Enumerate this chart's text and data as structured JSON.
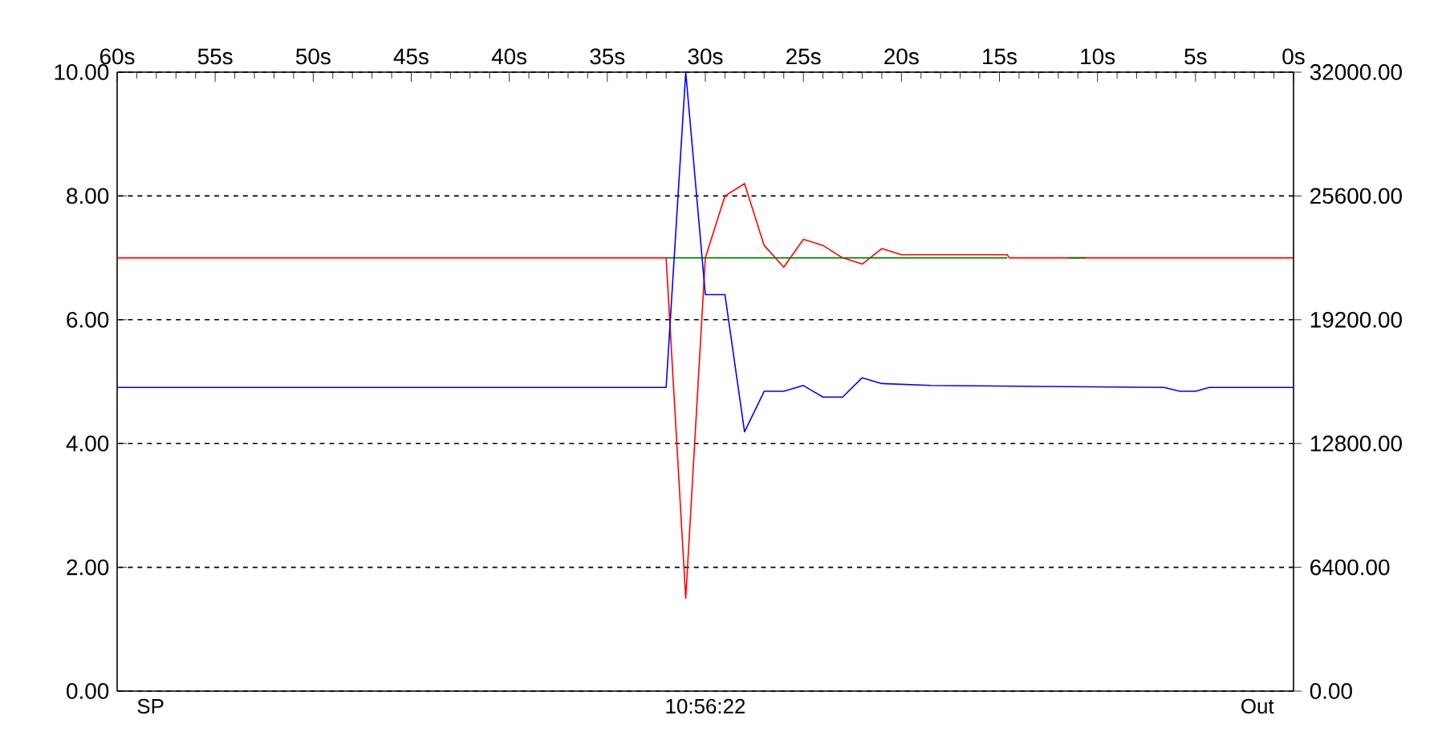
{
  "chart_data": {
    "type": "line",
    "x": [
      60,
      32,
      31,
      30,
      29,
      28,
      27,
      26,
      25,
      24,
      23,
      22,
      21,
      20,
      14.6,
      14.5,
      0
    ],
    "xlim": [
      60,
      0
    ],
    "xticks": [
      {
        "value": 60,
        "label": "60s"
      },
      {
        "value": 55,
        "label": "55s"
      },
      {
        "value": 50,
        "label": "50s"
      },
      {
        "value": 45,
        "label": "45s"
      },
      {
        "value": 40,
        "label": "40s"
      },
      {
        "value": 35,
        "label": "35s"
      },
      {
        "value": 30,
        "label": "30s"
      },
      {
        "value": 25,
        "label": "25s"
      },
      {
        "value": 20,
        "label": "20s"
      },
      {
        "value": 15,
        "label": "15s"
      },
      {
        "value": 10,
        "label": "10s"
      },
      {
        "value": 5,
        "label": "5s"
      },
      {
        "value": 0,
        "label": "0s"
      }
    ],
    "ylim": [
      0,
      10
    ],
    "yticks": [
      {
        "value": 0,
        "label": "0.00"
      },
      {
        "value": 2,
        "label": "2.00"
      },
      {
        "value": 4,
        "label": "4.00"
      },
      {
        "value": 6,
        "label": "6.00"
      },
      {
        "value": 8,
        "label": "8.00"
      },
      {
        "value": 10,
        "label": "10.00"
      }
    ],
    "y2lim": [
      0,
      32000
    ],
    "y2ticks": [
      {
        "value": 0,
        "label": "0.00"
      },
      {
        "value": 6400,
        "label": "6400.00"
      },
      {
        "value": 12800,
        "label": "12800.00"
      },
      {
        "value": 19200,
        "label": "19200.00"
      },
      {
        "value": 25600,
        "label": "25600.00"
      },
      {
        "value": 32000,
        "label": "32000.00"
      }
    ],
    "series": [
      {
        "color": "#ff0000",
        "values": [
          7.0,
          7.0,
          1.5,
          7.0,
          8.0,
          8.2,
          7.2,
          6.85,
          7.3,
          7.2,
          7.0,
          6.9,
          7.15,
          7.05,
          7.05,
          7.0,
          7.0
        ]
      },
      {
        "color": "#008000",
        "x": [
          32,
          14.6,
          13,
          11.5,
          10.6
        ],
        "values": [
          7.0,
          7.0,
          null,
          7.0,
          7.0
        ]
      },
      {
        "color": "#0000ff",
        "axis": "y2",
        "x": [
          60,
          32,
          31,
          30,
          29,
          28,
          27,
          26,
          25,
          24,
          23,
          22,
          21,
          18.5,
          6.6,
          5.8,
          5,
          4.3,
          0
        ],
        "values": [
          15700,
          15700,
          32000,
          20500,
          20500,
          13400,
          15500,
          15500,
          15800,
          15200,
          15200,
          16200,
          15900,
          15800,
          15700,
          15500,
          15500,
          15700,
          15700
        ]
      }
    ],
    "grid": "y",
    "line_style": "solid",
    "annotations": [
      "SP",
      "10:56:22",
      "Out"
    ]
  }
}
